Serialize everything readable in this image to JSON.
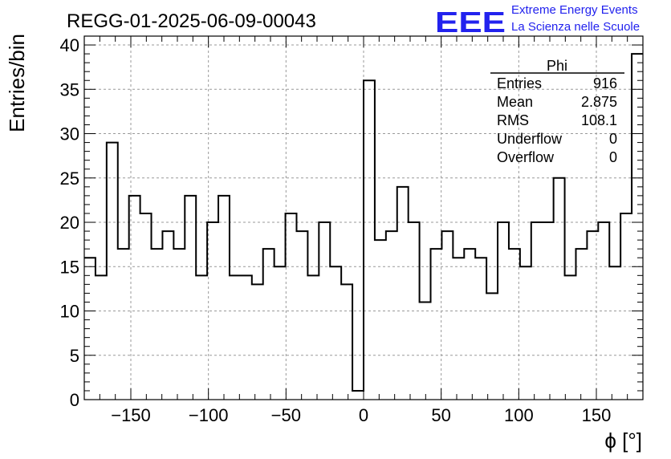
{
  "chart_data": {
    "type": "bar",
    "title": "REGG-01-2025-06-09-00043",
    "xlabel": "ϕ [°]",
    "ylabel": "Entries/bin",
    "xlim": [
      -180,
      180
    ],
    "ylim": [
      0,
      41
    ],
    "grid": true,
    "bin_width": 7.2,
    "xticks": [
      -150,
      -100,
      -50,
      0,
      50,
      100,
      150
    ],
    "xtick_labels": [
      "−150",
      "−100",
      "−50",
      "0",
      "50",
      "100",
      "150"
    ],
    "yticks": [
      0,
      5,
      10,
      15,
      20,
      25,
      30,
      35,
      40
    ],
    "values": [
      16,
      14,
      29,
      17,
      23,
      21,
      17,
      19,
      17,
      23,
      14,
      20,
      23,
      14,
      14,
      13,
      17,
      15,
      21,
      19,
      14,
      20,
      15,
      13,
      1,
      36,
      18,
      19,
      24,
      20,
      11,
      17,
      19,
      16,
      17,
      16,
      12,
      20,
      17,
      15,
      20,
      20,
      25,
      14,
      17,
      19,
      20,
      15,
      21,
      39
    ],
    "stats_box": {
      "name": "Phi",
      "rows": [
        {
          "label": "Entries",
          "value": "916"
        },
        {
          "label": "Mean",
          "value": "2.875"
        },
        {
          "label": "RMS",
          "value": "108.1"
        },
        {
          "label": "Underflow",
          "value": "0"
        },
        {
          "label": "Overflow",
          "value": "0"
        }
      ]
    }
  },
  "branding": {
    "logo": "EEE",
    "line1": "Extreme Energy Events",
    "line2": "La Scienza nelle Scuole",
    "color": "#2222ee"
  }
}
